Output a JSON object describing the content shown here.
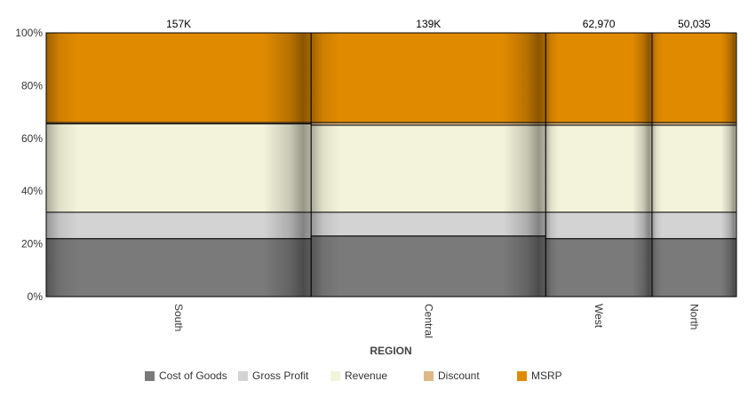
{
  "chart_data": {
    "type": "bar",
    "stacked": "percent",
    "variable_width": true,
    "categories": [
      "South",
      "Central",
      "West",
      "North"
    ],
    "totals": [
      157000,
      139000,
      62970,
      50035
    ],
    "total_labels": [
      "157K",
      "139K",
      "62,970",
      "50,035"
    ],
    "series": [
      {
        "name": "Cost of Goods",
        "color": "#7a7a7a",
        "values": [
          22,
          23,
          22,
          22
        ]
      },
      {
        "name": "Gross Profit",
        "color": "#d3d3d3",
        "values": [
          10,
          9,
          10,
          10
        ]
      },
      {
        "name": "Revenue",
        "color": "#f3f3db",
        "values": [
          33.5,
          33,
          33,
          33
        ]
      },
      {
        "name": "Discount",
        "color": "#deb887",
        "values": [
          0.5,
          1,
          1,
          1
        ]
      },
      {
        "name": "MSRP",
        "color": "#e08a00",
        "values": [
          34,
          34,
          34,
          34
        ]
      }
    ],
    "y_ticks": [
      "0%",
      "20%",
      "40%",
      "60%",
      "80%",
      "100%"
    ],
    "ylim": [
      0,
      100
    ],
    "xlabel": "REGION",
    "ylabel": "",
    "grid": false,
    "legend_position": "bottom"
  }
}
